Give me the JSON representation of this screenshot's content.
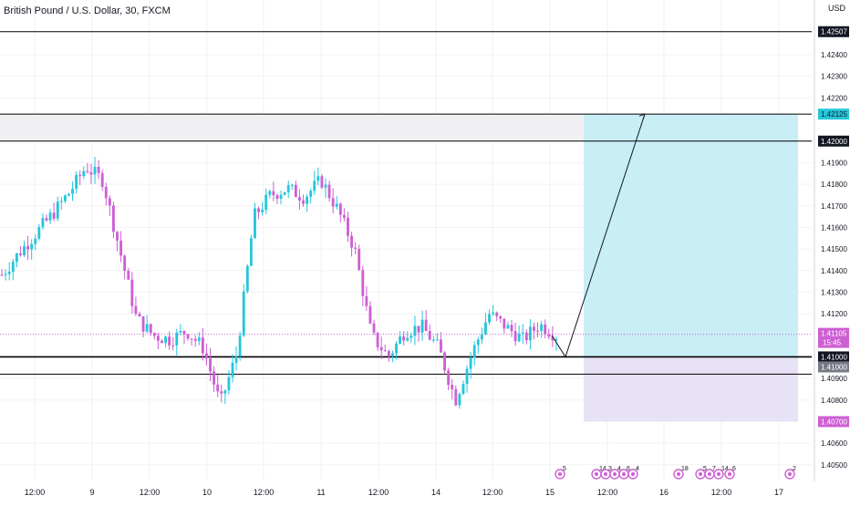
{
  "header": {
    "title": "British Pound / U.S. Dollar, 30, FXCM"
  },
  "axis": {
    "currency": "USD"
  },
  "colors": {
    "bull": "#26c6da",
    "bear": "#ce5fd3",
    "profit_zone": "#c9eef5",
    "loss_zone": "#e8e2f6",
    "band": "#f0f0f3",
    "line": "#000000",
    "grid": "#f2f2f2",
    "current_price": "#26c6da",
    "target_badge": "#26c6da",
    "stop_badge": "#ce5fd3",
    "level_badge": "#131722",
    "grey_badge": "#787b86"
  },
  "chart_data": {
    "type": "candlestick",
    "title": "British Pound / U.S. Dollar, 30, FXCM",
    "y_unit": "USD",
    "ylim": [
      1.4044,
      1.4262
    ],
    "grid": true,
    "x_ticks": [
      "12:00",
      "9",
      "12:00",
      "10",
      "12:00",
      "11",
      "12:00",
      "14",
      "12:00",
      "15",
      "12:00",
      "16",
      "12:00",
      "17"
    ],
    "y_ticks": [
      "1.42400",
      "1.42300",
      "1.42200",
      "1.42000",
      "1.41900",
      "1.41800",
      "1.41700",
      "1.41600",
      "1.41500",
      "1.41400",
      "1.41300",
      "1.41200",
      "1.40900",
      "1.40800",
      "1.40600",
      "1.40500"
    ],
    "price_path": [
      [
        "9",
        1.4138
      ],
      [
        "",
        1.4148
      ],
      [
        "",
        1.4157
      ],
      [
        "",
        1.4166
      ],
      [
        "",
        1.4176
      ],
      [
        "",
        1.4188
      ],
      [
        "",
        1.4182
      ],
      [
        "",
        1.415
      ],
      [
        "10",
        1.4118
      ],
      [
        "",
        1.411
      ],
      [
        "",
        1.4108
      ],
      [
        "",
        1.4112
      ],
      [
        "",
        1.4104
      ],
      [
        "",
        1.4078
      ],
      [
        "",
        1.4102
      ],
      [
        "",
        1.4165
      ],
      [
        "11",
        1.4175
      ],
      [
        "",
        1.4178
      ],
      [
        "",
        1.4174
      ],
      [
        "",
        1.4182
      ],
      [
        "",
        1.4168
      ],
      [
        "",
        1.415
      ],
      [
        "",
        1.411
      ],
      [
        "",
        1.41
      ],
      [
        "",
        1.4112
      ],
      [
        "14",
        1.4114
      ],
      [
        "",
        1.4104
      ],
      [
        "",
        1.408
      ],
      [
        "",
        1.4102
      ],
      [
        "",
        1.412
      ],
      [
        "",
        1.4114
      ],
      [
        "",
        1.4108
      ],
      [
        "",
        1.4115
      ],
      [
        "15",
        1.411
      ]
    ],
    "horizontal_lines": [
      {
        "price_label": "1.42507"
      },
      {
        "price_label": "1.42000"
      },
      {
        "price_label": "1.41000"
      }
    ],
    "range_band": {
      "from": 1.42,
      "to": 1.42125
    },
    "position": {
      "entry": 1.41,
      "target": 1.42125,
      "stop": 1.407,
      "target_label": "1.42125",
      "stop_label": "1.40700",
      "entry_label": "1.41000"
    },
    "projection_path": [
      [
        1.411,
        0
      ],
      [
        1.41,
        1
      ],
      [
        1.42125,
        2
      ]
    ],
    "current_price": {
      "value": 1.41105,
      "label": "1.41105",
      "countdown": "15:45"
    },
    "secondary_labels": [
      "1.41000",
      "1.40900"
    ],
    "events": [
      {
        "count": "5"
      },
      {
        "count": "14"
      },
      {
        "count": "3"
      },
      {
        "count": "4"
      },
      {
        "count": "6"
      },
      {
        "count": "4"
      },
      {
        "count": "18"
      },
      {
        "count": "5"
      },
      {
        "count": "7"
      },
      {
        "count": "14"
      },
      {
        "count": "6"
      },
      {
        "count": "2"
      }
    ]
  }
}
